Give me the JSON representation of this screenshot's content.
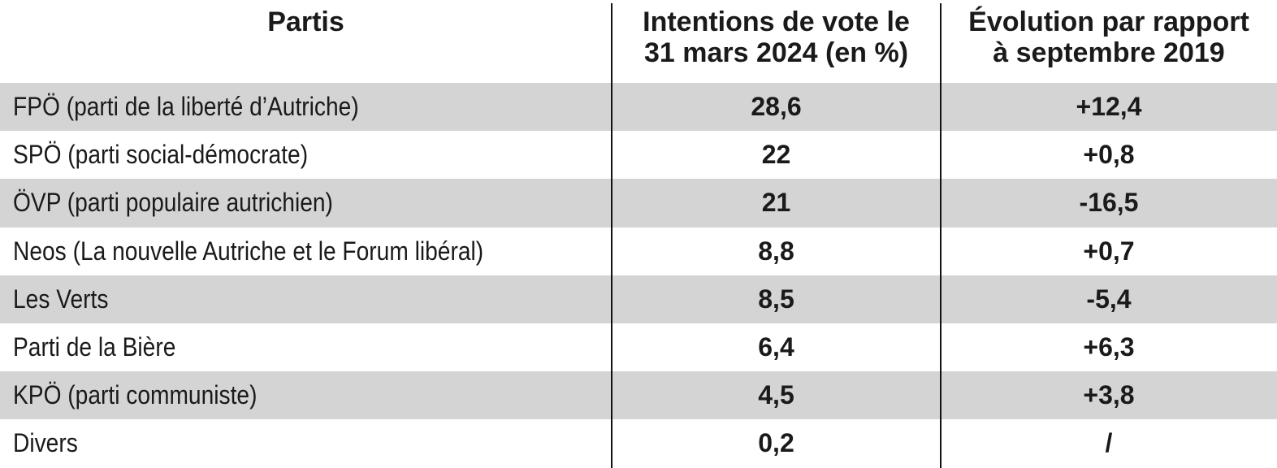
{
  "table": {
    "headers": [
      [
        "Partis"
      ],
      [
        "Intentions de vote le",
        "31 mars 2024 (en %)"
      ],
      [
        "Évolution par rapport",
        "à septembre 2019"
      ]
    ],
    "rows": [
      [
        "FPÖ (parti de la liberté d’Autriche)",
        "28,6",
        "+12,4"
      ],
      [
        "SPÖ (parti social-démocrate)",
        "22",
        "+0,8"
      ],
      [
        "ÖVP (parti populaire autrichien)",
        "21",
        "-16,5"
      ],
      [
        "Neos (La nouvelle Autriche et le Forum libéral)",
        "8,8",
        "+0,7"
      ],
      [
        "Les Verts",
        "8,5",
        "-5,4"
      ],
      [
        "Parti de la Bière",
        "6,4",
        "+6,3"
      ],
      [
        "KPÖ (parti communiste)",
        "4,5",
        "+3,8"
      ],
      [
        "Divers",
        "0,2",
        "/"
      ]
    ]
  }
}
